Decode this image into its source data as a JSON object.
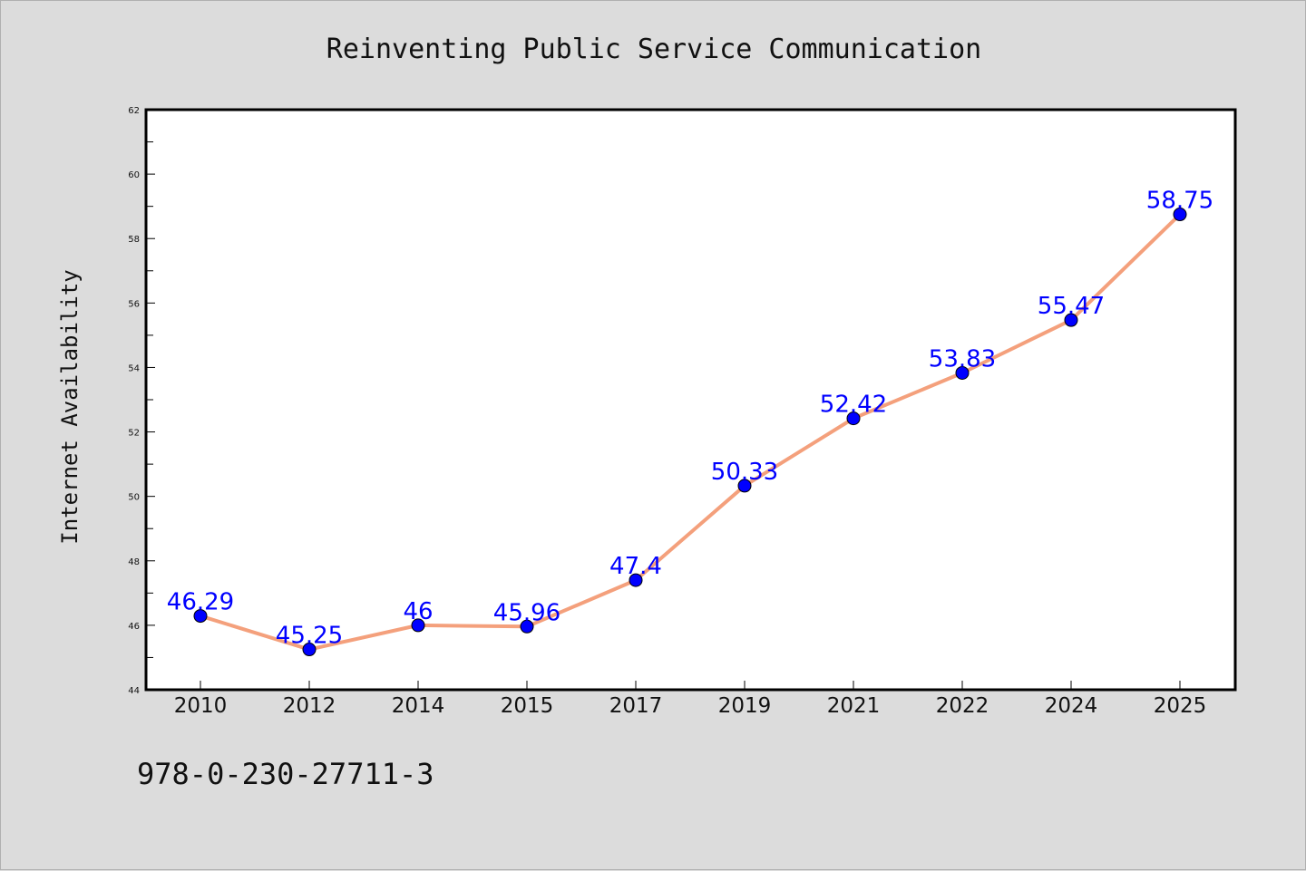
{
  "chart_data": {
    "type": "line",
    "title": "Reinventing Public Service Communication",
    "xlabel": "",
    "ylabel": "Internet Availability",
    "categories": [
      "2010",
      "2012",
      "2014",
      "2015",
      "2017",
      "2019",
      "2021",
      "2022",
      "2024",
      "2025"
    ],
    "series": [
      {
        "values": [
          46.29,
          45.25,
          46,
          45.96,
          47.4,
          50.33,
          52.42,
          53.83,
          55.47,
          58.75
        ],
        "data_labels": [
          "46.29",
          "45.25",
          "46",
          "45.96",
          "47.4",
          "50.33",
          "52.42",
          "53.83",
          "55.47",
          "58.75"
        ],
        "line_color": "#f4a07c",
        "marker_color": "#0000ff"
      }
    ],
    "ylim": [
      44,
      62
    ],
    "yticks": [
      "44",
      "46",
      "48",
      "50",
      "52",
      "54",
      "56",
      "58",
      "60",
      "62"
    ],
    "grid": false,
    "legend": "none"
  },
  "footer": {
    "isbn": "978-0-230-27711-3"
  },
  "colors": {
    "background": "#dcdcdc",
    "plot_area": "#ffffff",
    "line": "#f4a07c",
    "marker": "#0000ff",
    "data_label": "#0000ff"
  }
}
